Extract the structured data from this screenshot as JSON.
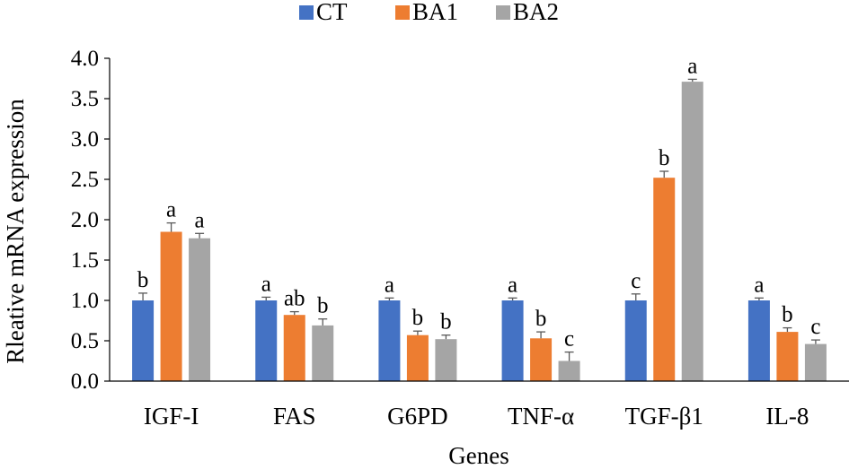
{
  "chart_data": {
    "type": "bar",
    "title": "",
    "xlabel": "Genes",
    "ylabel": "Rleative mRNA expression",
    "ylim": [
      0,
      4
    ],
    "yticks": [
      "0.0",
      "0.5",
      "1.0",
      "1.5",
      "2.0",
      "2.5",
      "3.0",
      "3.5",
      "4.0"
    ],
    "categories": [
      "IGF-I",
      "FAS",
      "G6PD",
      "TNF-α",
      "TGF-β1",
      "IL-8"
    ],
    "legend_position": "top-center",
    "series": [
      {
        "name": "CT",
        "color": "#4472C4",
        "values": [
          1.0,
          1.0,
          1.0,
          1.0,
          1.0,
          1.0
        ],
        "errors": [
          0.09,
          0.04,
          0.03,
          0.03,
          0.08,
          0.03
        ],
        "labels": [
          "b",
          "a",
          "a",
          "a",
          "c",
          "a"
        ]
      },
      {
        "name": "BA1",
        "color": "#ED7D31",
        "values": [
          1.85,
          0.82,
          0.57,
          0.53,
          2.52,
          0.61
        ],
        "errors": [
          0.11,
          0.04,
          0.05,
          0.08,
          0.08,
          0.05
        ],
        "labels": [
          "a",
          "ab",
          "b",
          "b",
          "b",
          "b"
        ]
      },
      {
        "name": "BA2",
        "color": "#A5A5A5",
        "values": [
          1.77,
          0.69,
          0.52,
          0.25,
          3.71,
          0.46
        ],
        "errors": [
          0.06,
          0.08,
          0.05,
          0.11,
          0.03,
          0.05
        ],
        "labels": [
          "a",
          "b",
          "b",
          "c",
          "a",
          "c"
        ]
      }
    ]
  }
}
